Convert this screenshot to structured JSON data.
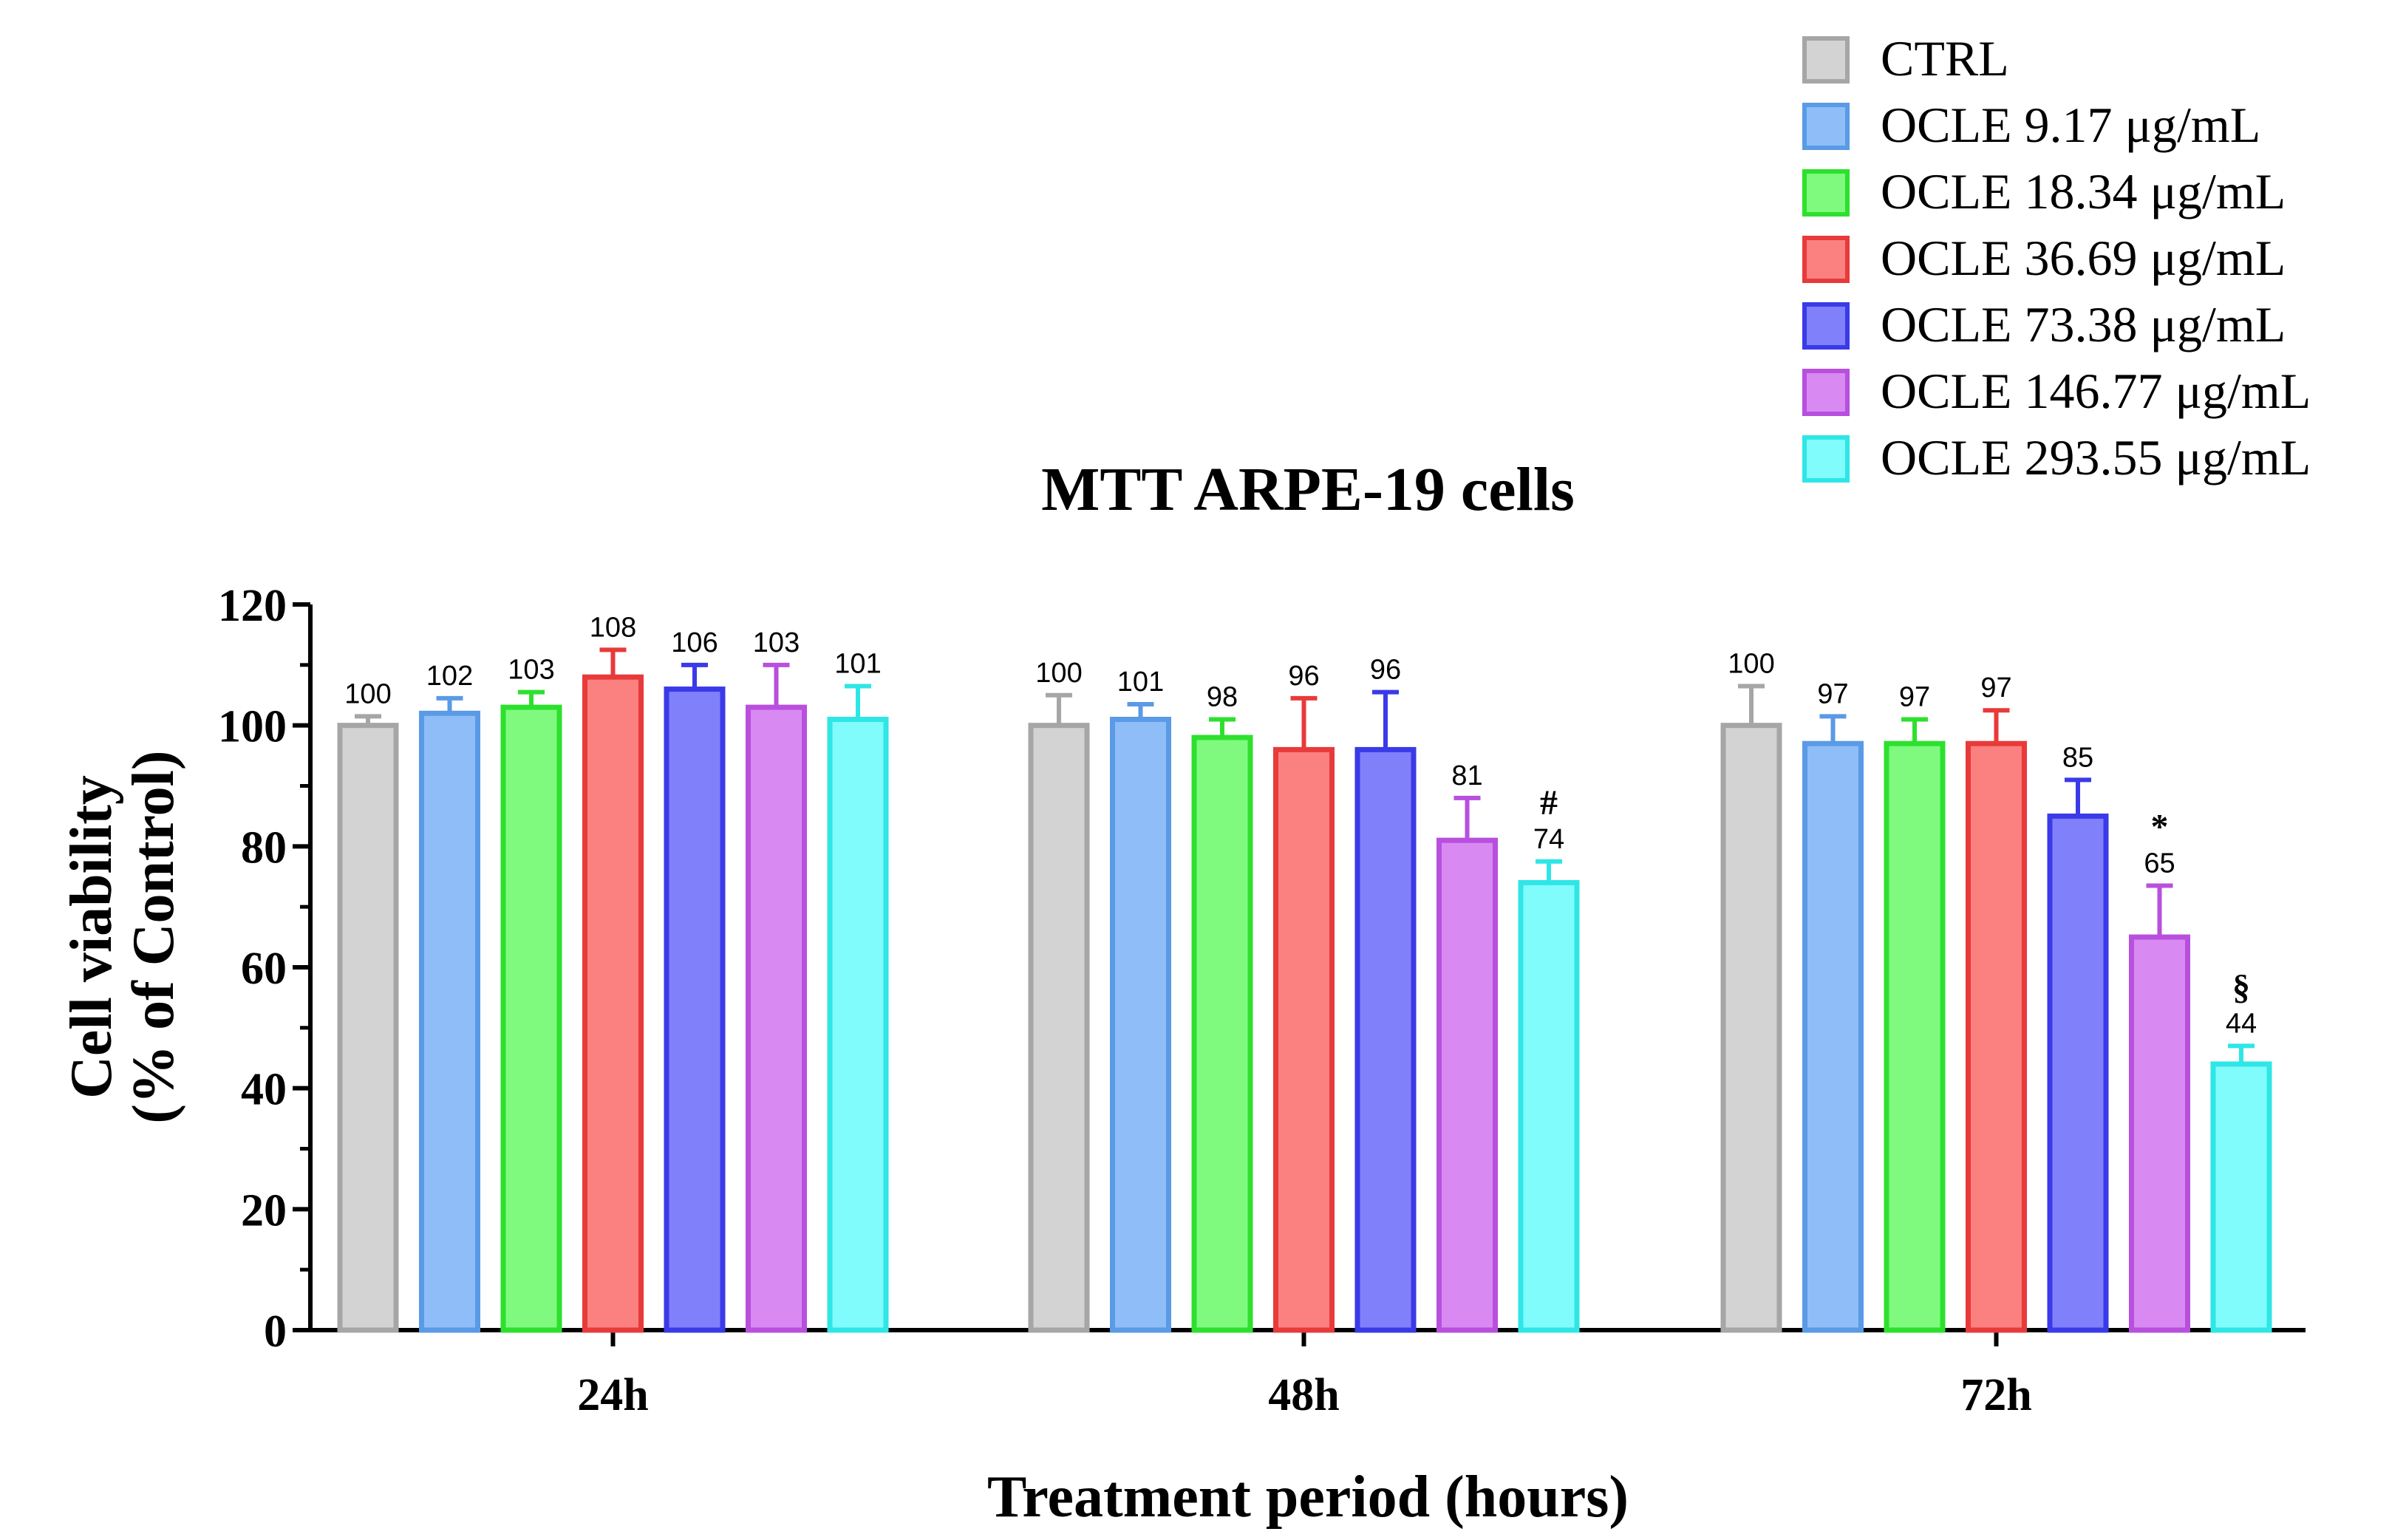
{
  "chart_data": {
    "type": "bar",
    "title": "MTT ARPE-19 cells",
    "xlabel": "Treatment period (hours)",
    "ylabel_line1": "Cell viability",
    "ylabel_line2": "(% of Control)",
    "ylim": [
      0,
      120
    ],
    "yticks": [
      "0",
      "20",
      "40",
      "60",
      "80",
      "100",
      "120"
    ],
    "categories": [
      "24h",
      "48h",
      "72h"
    ],
    "legend_position": "top-right",
    "series": [
      {
        "name": "CTRL",
        "fill": "#d3d3d3",
        "stroke": "#a6a6a6",
        "values": [
          100,
          100,
          100
        ],
        "errors": [
          1.5,
          5,
          6.5
        ],
        "markers": [
          "",
          "",
          ""
        ]
      },
      {
        "name": "OCLE 9.17 μg/mL",
        "fill": "#8fbdf7",
        "stroke": "#5a9ae6",
        "values": [
          102,
          101,
          97
        ],
        "errors": [
          2.5,
          2.5,
          4.5
        ],
        "markers": [
          "",
          "",
          ""
        ]
      },
      {
        "name": "OCLE 18.34 μg/mL",
        "fill": "#7ffa7f",
        "stroke": "#2ee02e",
        "values": [
          103,
          98,
          97
        ],
        "errors": [
          2.5,
          3,
          4
        ],
        "markers": [
          "",
          "",
          ""
        ]
      },
      {
        "name": "OCLE 36.69 μg/mL",
        "fill": "#fb8080",
        "stroke": "#e83a3a",
        "values": [
          108,
          96,
          97
        ],
        "errors": [
          4.5,
          8.5,
          5.5
        ],
        "markers": [
          "",
          "",
          ""
        ]
      },
      {
        "name": "OCLE 73.38 μg/mL",
        "fill": "#8080fb",
        "stroke": "#3a3ae8",
        "values": [
          106,
          96,
          85
        ],
        "errors": [
          4,
          9.5,
          6
        ],
        "markers": [
          "",
          "",
          ""
        ]
      },
      {
        "name": "OCLE 146.77 μg/mL",
        "fill": "#d88af2",
        "stroke": "#b84fdd",
        "values": [
          103,
          81,
          65
        ],
        "errors": [
          7,
          7,
          8.5
        ],
        "markers": [
          "",
          "",
          "*"
        ]
      },
      {
        "name": "OCLE 293.55 μg/mL",
        "fill": "#80fcfc",
        "stroke": "#2fe6e6",
        "values": [
          101,
          74,
          44
        ],
        "errors": [
          5.5,
          3.5,
          3
        ],
        "markers": [
          "",
          "#",
          "§"
        ]
      }
    ]
  }
}
